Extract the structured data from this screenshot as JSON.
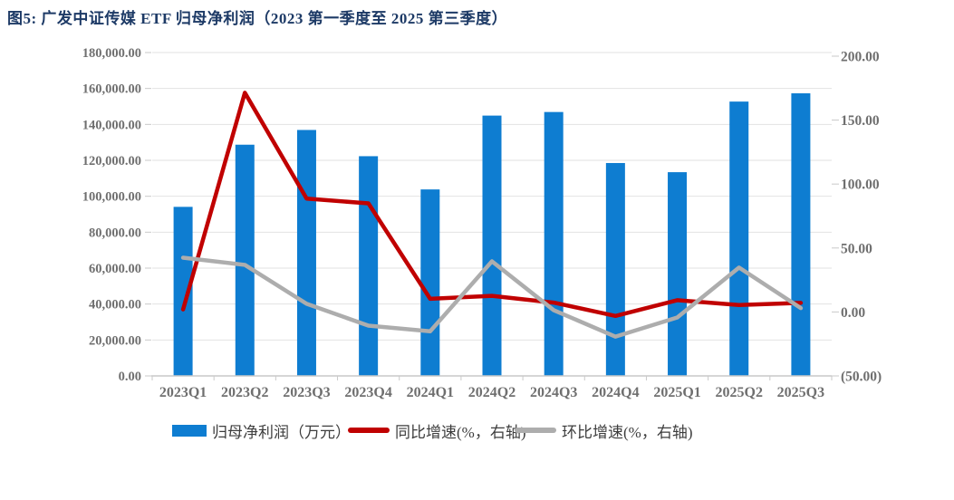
{
  "title": "图5:  广发中证传媒 ETF 归母净利润（2023 第一季度至 2025 第三季度）",
  "chart_data": {
    "type": "bar",
    "subtype": "combo-bar-line",
    "categories": [
      "2023Q1",
      "2023Q2",
      "2023Q3",
      "2023Q4",
      "2024Q1",
      "2024Q2",
      "2024Q3",
      "2024Q4",
      "2025Q1",
      "2025Q2",
      "2025Q3"
    ],
    "series": [
      {
        "name": "归母净利润（万元）",
        "type": "bar",
        "axis": "left",
        "color": "#0E7DD1",
        "values": [
          94100,
          128700,
          136900,
          122300,
          103800,
          144900,
          146900,
          118500,
          113400,
          152700,
          157300
        ]
      },
      {
        "name": "同比增速(%，右轴)",
        "type": "line",
        "axis": "right",
        "color": "#C00000",
        "values": [
          2.0,
          171.4,
          88.6,
          84.9,
          10.3,
          12.6,
          7.3,
          -3.1,
          9.2,
          5.4,
          7.1
        ]
      },
      {
        "name": "环比增速(%，右轴)",
        "type": "line",
        "axis": "right",
        "color": "#ADADAD",
        "values": [
          42.4,
          36.8,
          6.4,
          -10.7,
          -15.1,
          39.6,
          1.4,
          -19.3,
          -4.3,
          34.7,
          3.0
        ]
      }
    ],
    "left_axis": {
      "min": 0,
      "max": 180000,
      "step": 20000,
      "tick_labels": [
        "0.00",
        "20,000.00",
        "40,000.00",
        "60,000.00",
        "80,000.00",
        "100,000.00",
        "120,000.00",
        "140,000.00",
        "160,000.00",
        "180,000.00"
      ]
    },
    "right_axis": {
      "min": -50,
      "max": 200,
      "step": 50,
      "tick_labels": [
        "(50.00)",
        "0.00",
        "50.00",
        "100.00",
        "150.00",
        "200.00"
      ],
      "negative_color": "#FE0000"
    },
    "grid": true,
    "legend_position": "bottom",
    "title": "图5:  广发中证传媒 ETF 归母净利润（2023 第一季度至 2025 第三季度）",
    "xlabel": "",
    "ylabel_left": "归母净利润（万元）",
    "ylabel_right": "增速(%)"
  },
  "colors": {
    "title": "#1d3a66",
    "grid": "#e2e2e2",
    "axis": "#c9c9c9",
    "tick_text": "#6f6f6f",
    "negative_tick": "#FE0000",
    "background": "#ffffff"
  }
}
